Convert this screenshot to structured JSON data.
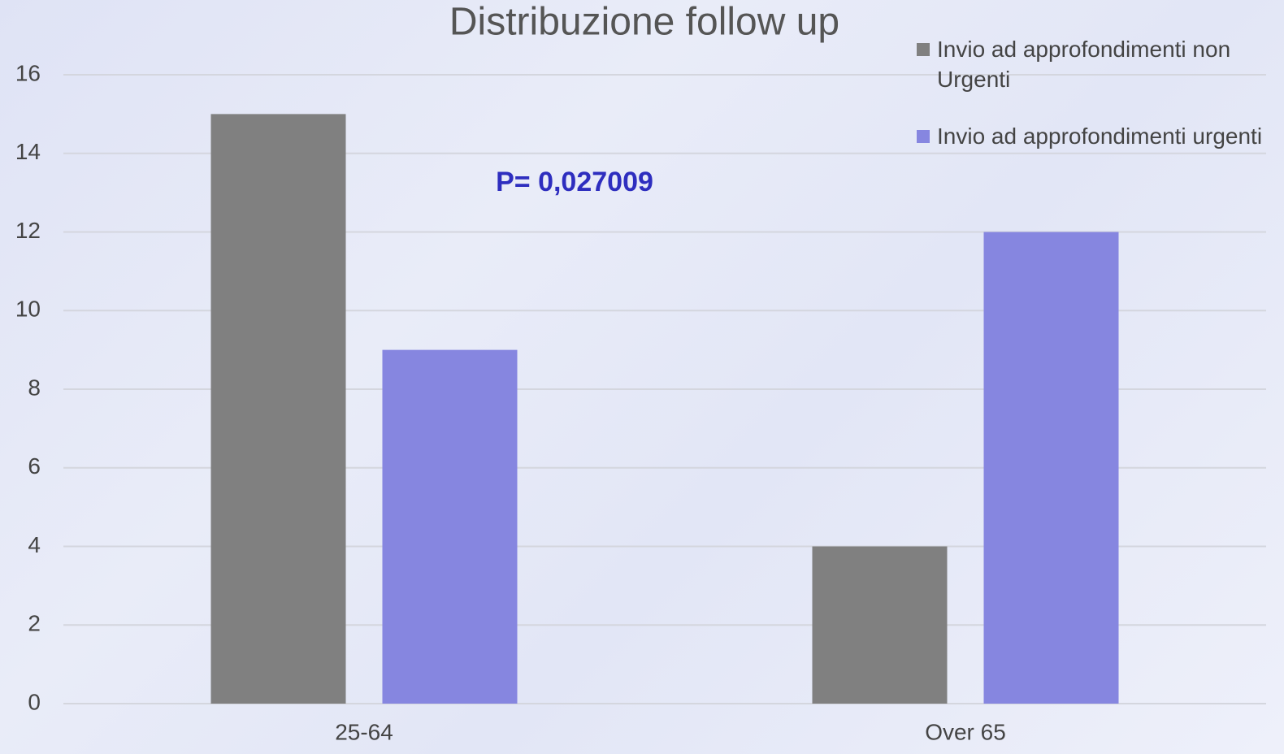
{
  "chart_data": {
    "type": "bar",
    "title": "Distribuzione follow up",
    "categories": [
      "25-64",
      "Over 65"
    ],
    "series": [
      {
        "name": "Invio ad approfondimenti non Urgenti",
        "color": "#808080",
        "values": [
          15,
          4
        ]
      },
      {
        "name": "Invio ad approfondimenti urgenti",
        "color": "#8686e0",
        "values": [
          9,
          12
        ]
      }
    ],
    "annotations": [
      "P= 0,027009"
    ],
    "ylim": [
      0,
      16
    ],
    "yticks": [
      0,
      2,
      4,
      6,
      8,
      10,
      12,
      14,
      16
    ],
    "grid": true,
    "legend": "top-right"
  }
}
